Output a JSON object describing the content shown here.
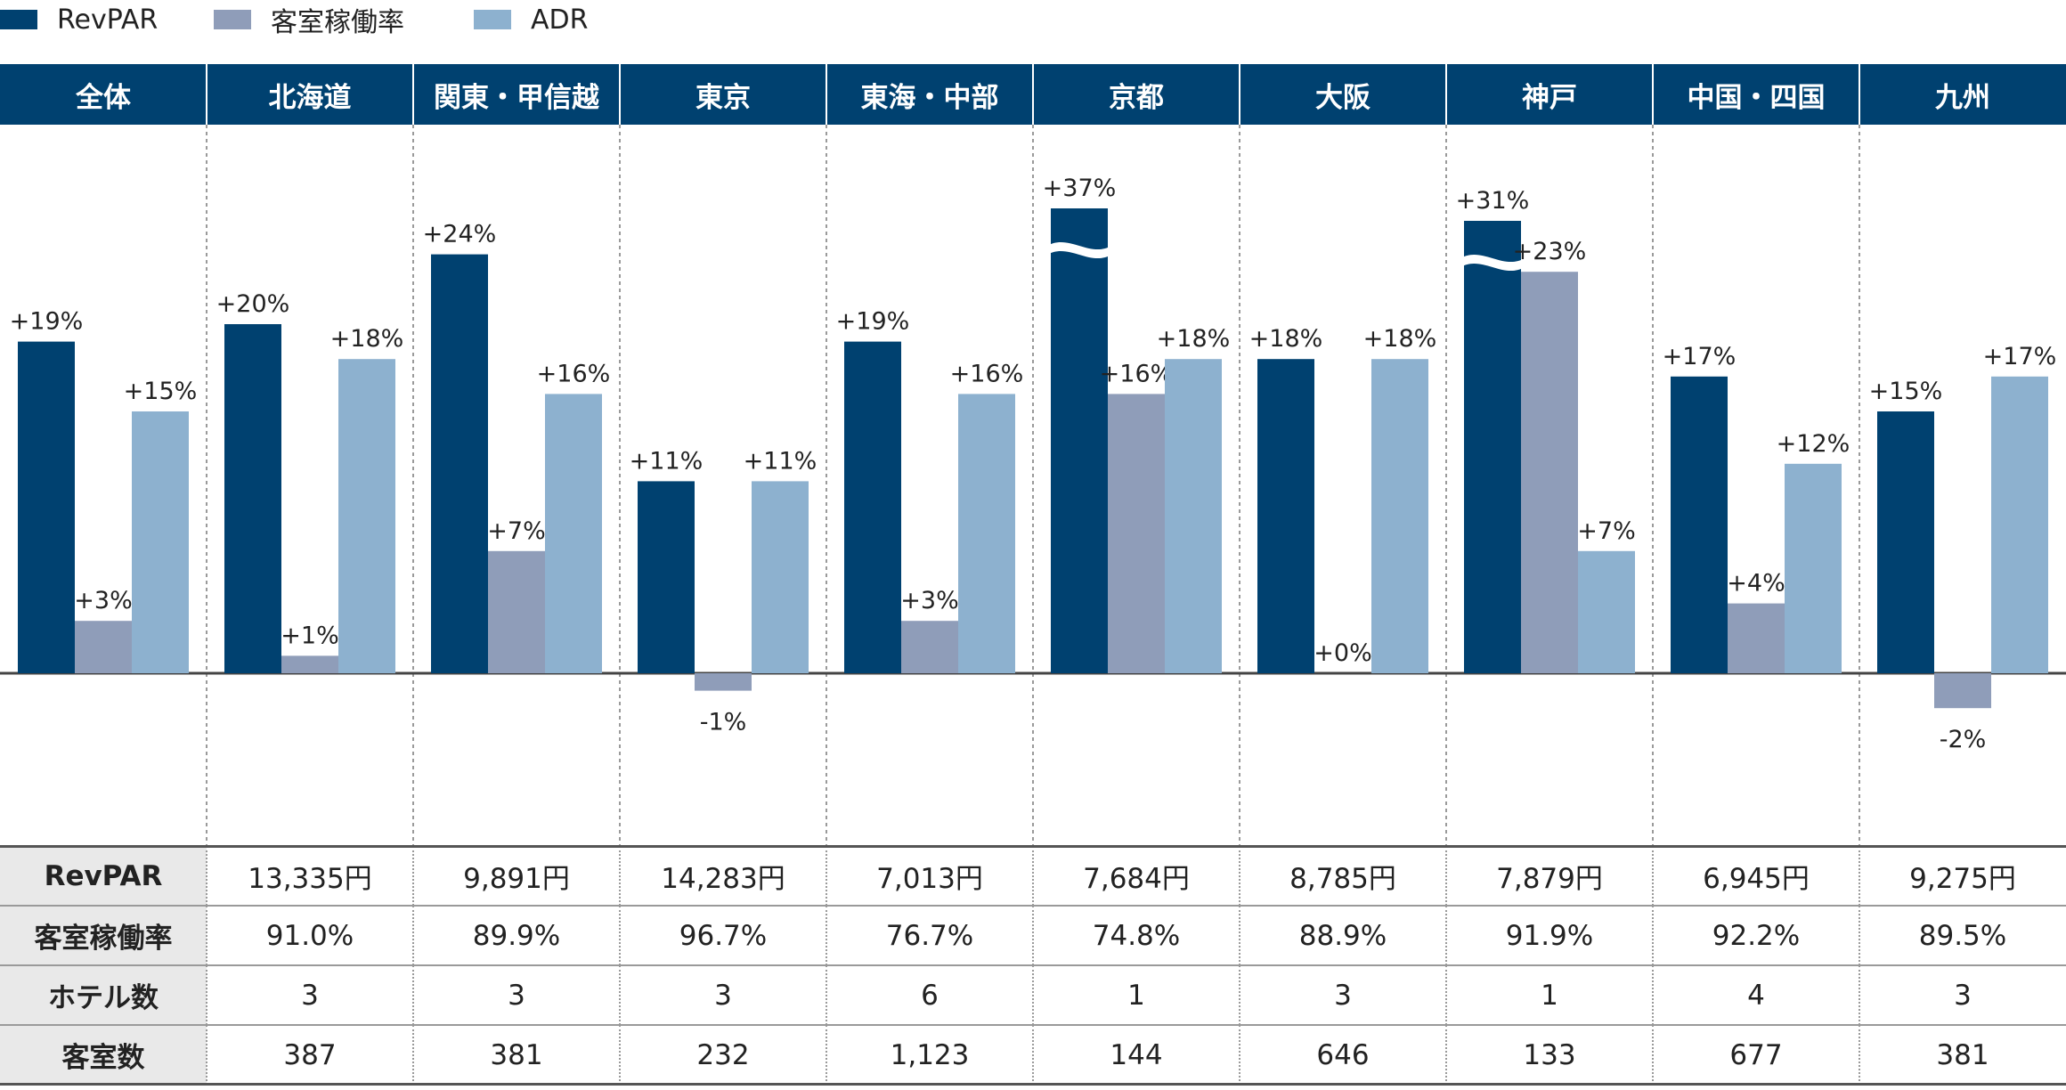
{
  "legend": [
    {
      "label": "RevPAR",
      "color": "#004170"
    },
    {
      "label": "客室稼働率",
      "color": "#8f9db9"
    },
    {
      "label": "ADR",
      "color": "#8db1cf"
    }
  ],
  "chart_data": {
    "type": "bar",
    "title": "",
    "xlabel": "",
    "ylabel": "",
    "categories": [
      "全体",
      "北海道",
      "関東・甲信越",
      "東京",
      "東海・中部",
      "京都",
      "大阪",
      "神戸",
      "中国・四国",
      "九州"
    ],
    "series": [
      {
        "name": "RevPAR",
        "values": [
          19,
          20,
          24,
          11,
          19,
          37,
          18,
          31,
          17,
          15
        ],
        "labels": [
          "+19%",
          "+20%",
          "+24%",
          "+11%",
          "+19%",
          "+37%",
          "+18%",
          "+31%",
          "+17%",
          "+15%"
        ]
      },
      {
        "name": "客室稼働率",
        "values": [
          3,
          1,
          7,
          -1,
          3,
          16,
          0,
          23,
          4,
          -2
        ],
        "labels": [
          "+3%",
          "+1%",
          "+7%",
          "-1%",
          "+3%",
          "+16%",
          "+0%",
          "+23%",
          "+4%",
          "-2%"
        ]
      },
      {
        "name": "ADR",
        "values": [
          15,
          18,
          16,
          11,
          16,
          18,
          18,
          7,
          12,
          17
        ],
        "labels": [
          "+15%",
          "+18%",
          "+16%",
          "+11%",
          "+16%",
          "+18%",
          "+18%",
          "+7%",
          "+12%",
          "+17%"
        ]
      }
    ],
    "ylim": [
      -10,
      30
    ],
    "axis_break": {
      "series": "RevPAR",
      "categories": [
        "京都",
        "神戸"
      ]
    },
    "grid": false,
    "legend_position": "top-left"
  },
  "table": {
    "rows": [
      {
        "label": "RevPAR",
        "values": [
          "13,335円",
          "9,891円",
          "14,283円",
          "7,013円",
          "7,684円",
          "8,785円",
          "7,879円",
          "6,945円",
          "9,275円"
        ]
      },
      {
        "label": "客室稼働率",
        "values": [
          "91.0%",
          "89.9%",
          "96.7%",
          "76.7%",
          "74.8%",
          "88.9%",
          "91.9%",
          "92.2%",
          "89.5%"
        ]
      },
      {
        "label": "ホテル数",
        "values": [
          "3",
          "3",
          "3",
          "6",
          "1",
          "3",
          "1",
          "4",
          "3"
        ]
      },
      {
        "label": "客室数",
        "values": [
          "387",
          "381",
          "232",
          "1,123",
          "144",
          "646",
          "133",
          "677",
          "381"
        ]
      }
    ]
  }
}
